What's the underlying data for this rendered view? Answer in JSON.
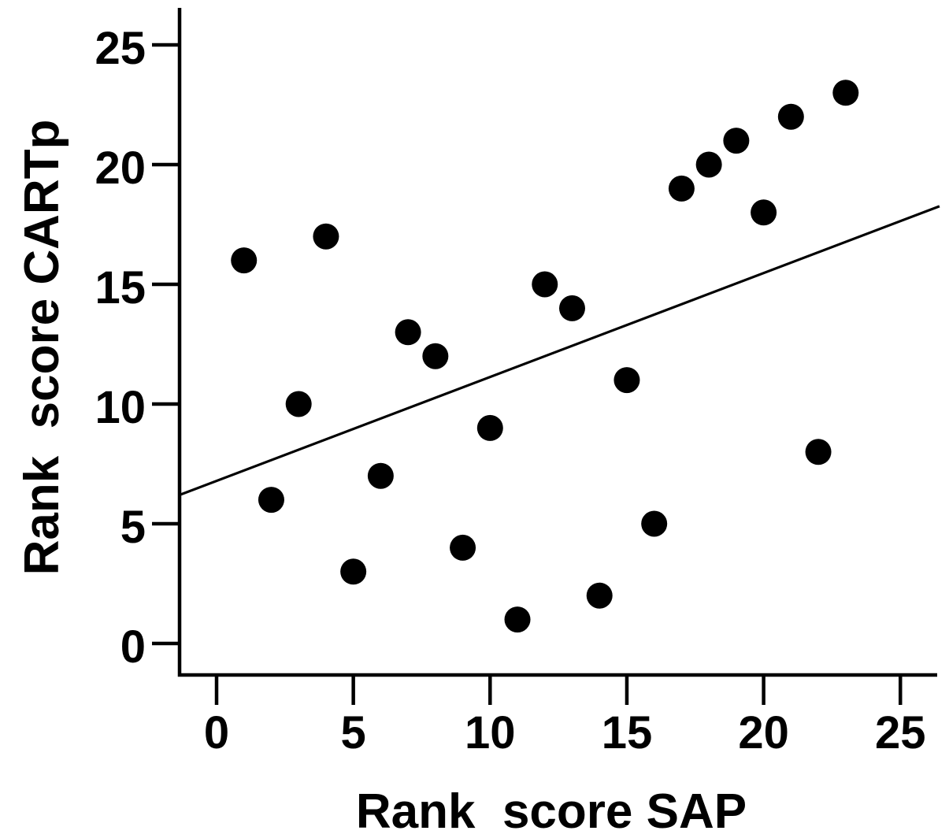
{
  "chart_data": {
    "type": "scatter",
    "title": "",
    "xlabel": "Rank  score SAP",
    "ylabel": "Rank  score CARTp",
    "x_ticks": [
      0,
      5,
      10,
      15,
      20,
      25
    ],
    "y_ticks": [
      0,
      5,
      10,
      15,
      20,
      25
    ],
    "xlim": [
      -1.35,
      26.45
    ],
    "ylim": [
      -1.3,
      26.6
    ],
    "grid": false,
    "legend": "none",
    "marker": {
      "shape": "filled-circle",
      "color": "#000000"
    },
    "background_color": "#ffffff",
    "axis_color": "#000000",
    "points": [
      [
        1,
        16
      ],
      [
        2,
        6
      ],
      [
        3,
        10
      ],
      [
        4,
        17
      ],
      [
        5,
        3
      ],
      [
        6,
        7
      ],
      [
        7,
        13
      ],
      [
        8,
        12
      ],
      [
        9,
        4
      ],
      [
        10,
        9
      ],
      [
        11,
        1
      ],
      [
        12,
        15
      ],
      [
        13,
        14
      ],
      [
        14,
        2
      ],
      [
        15,
        11
      ],
      [
        16,
        5
      ],
      [
        17,
        19
      ],
      [
        18,
        20
      ],
      [
        19,
        21
      ],
      [
        20,
        18
      ],
      [
        21,
        22
      ],
      [
        22,
        8
      ],
      [
        23,
        23
      ]
    ],
    "trendline": {
      "type": "linear-regression",
      "slope": 0.434,
      "intercept": 6.79,
      "x_start": -1.35,
      "x_end": 26.43,
      "color": "#000000"
    }
  }
}
